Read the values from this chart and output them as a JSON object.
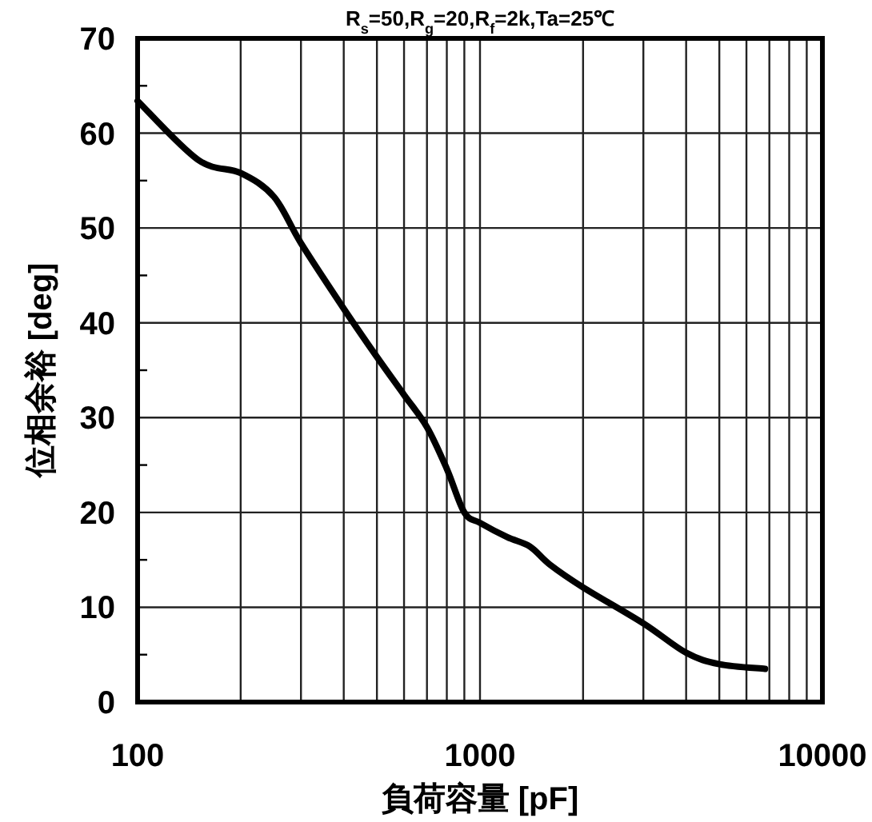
{
  "chart_data": {
    "type": "line",
    "title": "R$_{s}$=50,R$_{g}$=20,R$_{f}$=2k,Ta=25℃",
    "xlabel": "負荷容量 [pF]",
    "ylabel": "位相余裕 [deg]",
    "log": "x",
    "grid": true,
    "line_style": "solid",
    "xlim": [
      100,
      10000
    ],
    "xticks": [
      100,
      1000,
      10000
    ],
    "ylim": [
      0,
      70
    ],
    "yticks": [
      0,
      {
        "value": 5,
        "label": null
      },
      10,
      {
        "value": 15,
        "label": null
      },
      20,
      {
        "value": 25,
        "label": null
      },
      30,
      {
        "value": 35,
        "label": null
      },
      40,
      {
        "value": 45,
        "label": null
      },
      50,
      {
        "value": 55,
        "label": null
      },
      60,
      {
        "value": 65,
        "label": null
      },
      70
    ],
    "x": [
      100,
      150,
      200,
      250,
      300,
      400,
      500,
      600,
      700,
      800,
      900,
      1000,
      1200,
      1400,
      1600,
      2000,
      3000,
      4000,
      5000,
      6800
    ],
    "series": [
      {
        "color": "#000000",
        "values": [
          63.4,
          57.2,
          55.8,
          53.3,
          48.4,
          41.5,
          36.4,
          32.4,
          29,
          24.6,
          20,
          18.9,
          17.4,
          16.4,
          14.5,
          12.1,
          8.3,
          5.2,
          4.0,
          3.5
        ]
      }
    ]
  }
}
